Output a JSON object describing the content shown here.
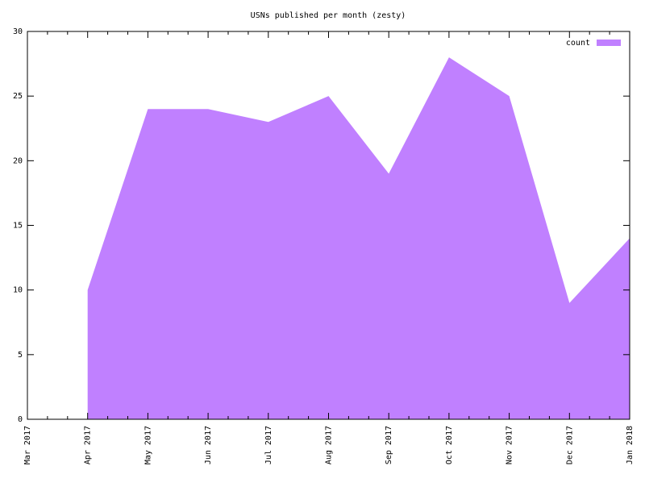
{
  "chart_data": {
    "type": "area",
    "title": "USNs published per month (zesty)",
    "categories": [
      "Mar 2017",
      "Apr 2017",
      "May 2017",
      "Jun 2017",
      "Jul 2017",
      "Aug 2017",
      "Sep 2017",
      "Oct 2017",
      "Nov 2017",
      "Dec 2017",
      "Jan 2018"
    ],
    "series": [
      {
        "name": "count",
        "color": "#c080ff",
        "values": [
          null,
          10,
          24,
          24,
          23,
          25,
          19,
          28,
          25,
          9,
          14
        ]
      }
    ],
    "ylim": [
      0,
      30
    ],
    "yticks": [
      0,
      5,
      10,
      15,
      20,
      25,
      30
    ],
    "legend": "top-right"
  }
}
